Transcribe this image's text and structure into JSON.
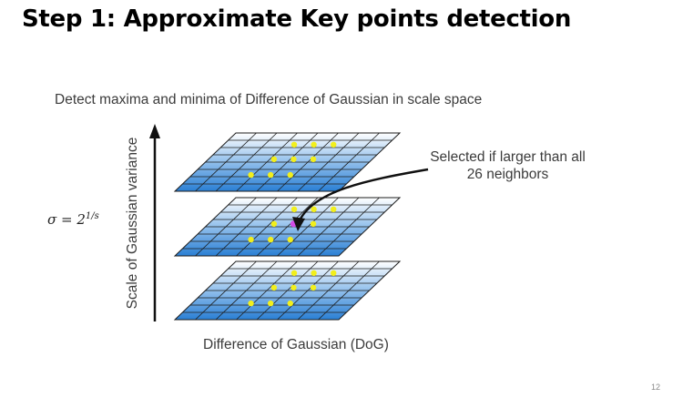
{
  "slide": {
    "title": "Step 1: Approximate Key points detection",
    "page_number": "12"
  },
  "figure": {
    "caption_top": "Detect maxima and minima of Difference of Gaussian in scale space",
    "y_axis_label": "Scale of Gaussian variance",
    "x_label": "Difference of Gaussian (DoG)",
    "sigma_formula": {
      "lhs": "σ = 2",
      "exponent": "1/s"
    },
    "annotation": "Selected if larger than all 26 neighbors",
    "colors": {
      "grid_dark": "#2a7fd4",
      "grid_light": "#ffffff",
      "grid_line": "#1c1c1c",
      "keypoint_neighbor": "#f2ef1c",
      "keypoint_selected": "#d24ce6",
      "arrow": "#111111"
    },
    "layers": 3,
    "grid_cells": 8
  }
}
